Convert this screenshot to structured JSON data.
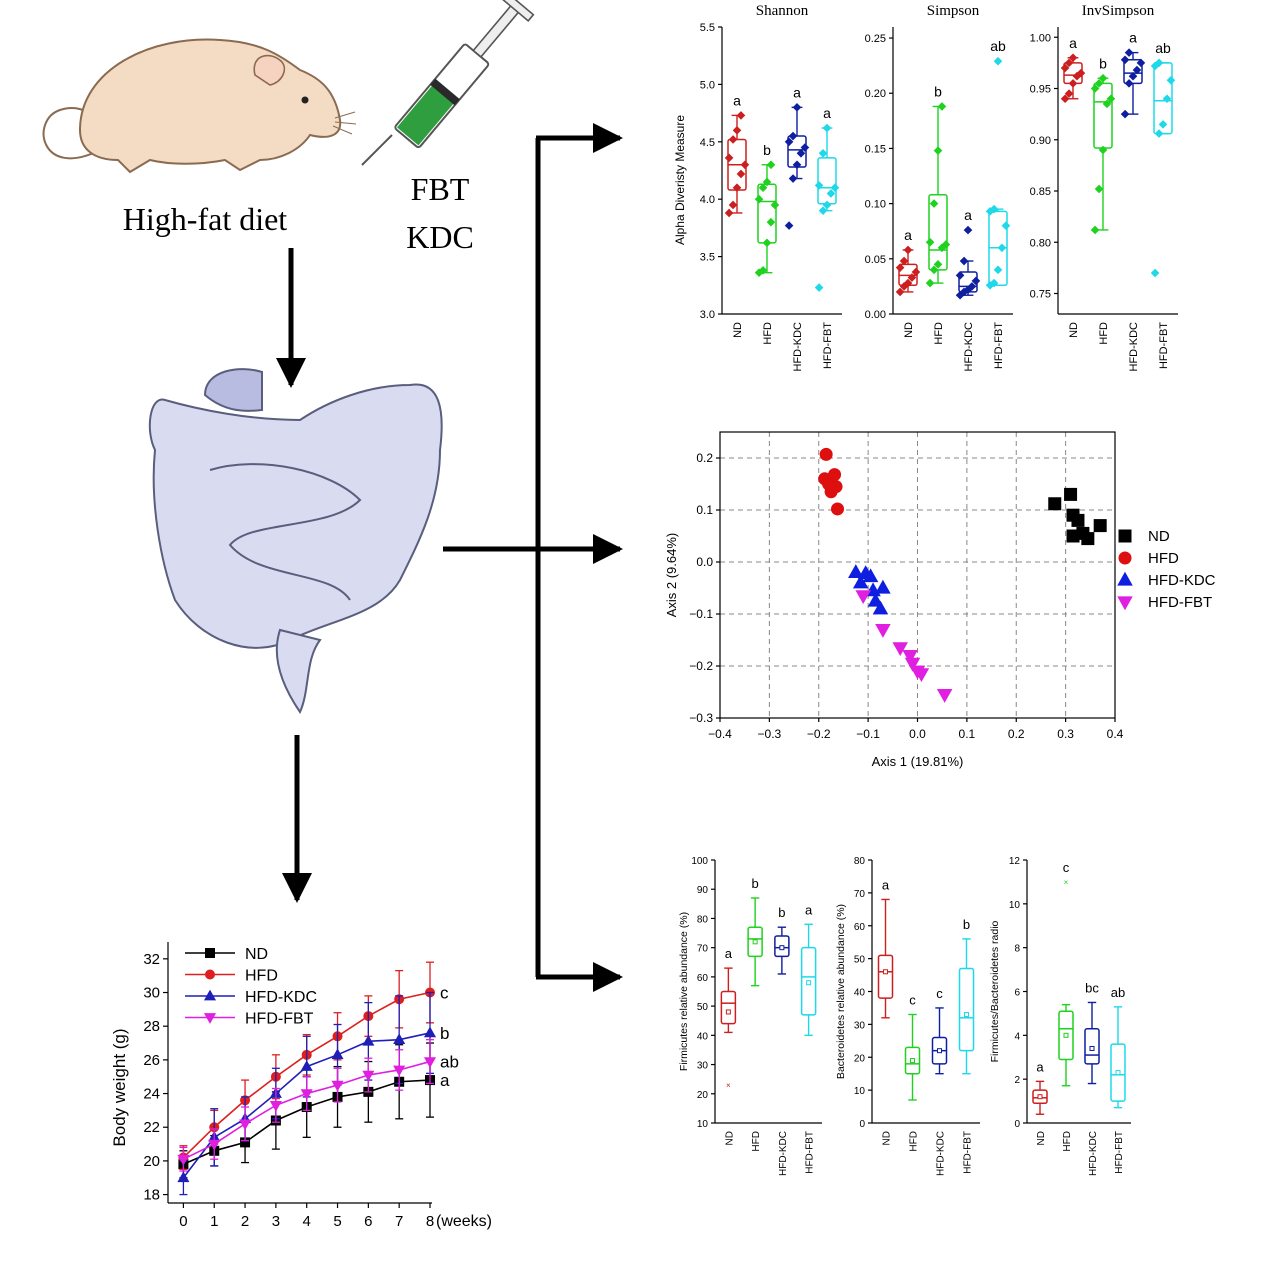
{
  "illustration": {
    "diet_label": "High-fat diet",
    "treatment_labels": [
      "FBT",
      "KDC"
    ]
  },
  "colors": {
    "ND": "#cc1f1f",
    "HFD": "#1fd21f",
    "HFD-KDC": "#0f1f9f",
    "HFD-FBT": "#1fd8e8",
    "mouse": "#f3dcc3",
    "gut": "#d9dcf0"
  },
  "chart_data": [
    {
      "id": "alpha",
      "type": "box",
      "ylabel": "Alpha Diveristy Measure",
      "groups": [
        "ND",
        "HFD",
        "HFD-KDC",
        "HFD-FBT"
      ],
      "panels": [
        {
          "title": "Shannon",
          "ylim": [
            3.0,
            5.5
          ],
          "yticks": [
            3.0,
            3.5,
            4.0,
            4.5,
            5.0,
            5.5
          ],
          "tick_labels": [
            "3.0",
            "3.5",
            "4.0",
            "4.5",
            "5.0",
            "5.5"
          ],
          "boxes": [
            {
              "q1": 4.08,
              "median": 4.3,
              "q3": 4.52,
              "whisker_low": 3.88,
              "whisker_high": 4.73,
              "points": [
                3.88,
                3.95,
                4.1,
                4.22,
                4.3,
                4.36,
                4.52,
                4.6,
                4.73
              ],
              "letter": "a"
            },
            {
              "q1": 3.62,
              "median": 3.98,
              "q3": 4.13,
              "whisker_low": 3.36,
              "whisker_high": 4.3,
              "points": [
                3.36,
                3.38,
                3.62,
                3.8,
                3.95,
                4.0,
                4.1,
                4.15,
                4.3
              ],
              "letter": "b"
            },
            {
              "q1": 4.28,
              "median": 4.43,
              "q3": 4.55,
              "whisker_low": 4.18,
              "whisker_high": 4.8,
              "points": [
                3.77,
                4.18,
                4.3,
                4.4,
                4.45,
                4.5,
                4.55,
                4.8
              ],
              "letter": "a"
            },
            {
              "q1": 3.96,
              "median": 4.1,
              "q3": 4.36,
              "whisker_low": 3.9,
              "whisker_high": 4.62,
              "points": [
                3.23,
                3.9,
                3.95,
                4.05,
                4.1,
                4.12,
                4.4,
                4.62
              ],
              "letter": "a"
            }
          ]
        },
        {
          "title": "Simpson",
          "ylim": [
            0.0,
            0.26
          ],
          "yticks": [
            0.0,
            0.05,
            0.1,
            0.15,
            0.2,
            0.25
          ],
          "tick_labels": [
            "0.00",
            "0.05",
            "0.10",
            "0.15",
            "0.20",
            "0.25"
          ],
          "boxes": [
            {
              "q1": 0.026,
              "median": 0.035,
              "q3": 0.045,
              "whisker_low": 0.02,
              "whisker_high": 0.058,
              "points": [
                0.02,
                0.025,
                0.028,
                0.033,
                0.038,
                0.042,
                0.048,
                0.058
              ],
              "letter": "a"
            },
            {
              "q1": 0.04,
              "median": 0.058,
              "q3": 0.108,
              "whisker_low": 0.028,
              "whisker_high": 0.188,
              "points": [
                0.028,
                0.04,
                0.045,
                0.06,
                0.063,
                0.065,
                0.1,
                0.148,
                0.188
              ],
              "letter": "b"
            },
            {
              "q1": 0.02,
              "median": 0.025,
              "q3": 0.038,
              "whisker_low": 0.017,
              "whisker_high": 0.048,
              "points": [
                0.017,
                0.02,
                0.022,
                0.025,
                0.03,
                0.035,
                0.048,
                0.076
              ],
              "letter": "a"
            },
            {
              "q1": 0.026,
              "median": 0.06,
              "q3": 0.093,
              "whisker_low": 0.026,
              "whisker_high": 0.095,
              "points": [
                0.026,
                0.028,
                0.04,
                0.06,
                0.08,
                0.093,
                0.095,
                0.229
              ],
              "letter": "ab"
            }
          ]
        },
        {
          "title": "InvSimpson",
          "ylim": [
            0.73,
            1.01
          ],
          "yticks": [
            0.75,
            0.8,
            0.85,
            0.9,
            0.95,
            1.0
          ],
          "tick_labels": [
            "0.75",
            "0.80",
            "0.85",
            "0.90",
            "0.95",
            "1.00"
          ],
          "boxes": [
            {
              "q1": 0.955,
              "median": 0.963,
              "q3": 0.975,
              "whisker_low": 0.94,
              "whisker_high": 0.98,
              "points": [
                0.94,
                0.945,
                0.955,
                0.962,
                0.965,
                0.97,
                0.975,
                0.98
              ],
              "letter": "a"
            },
            {
              "q1": 0.892,
              "median": 0.937,
              "q3": 0.955,
              "whisker_low": 0.812,
              "whisker_high": 0.96,
              "points": [
                0.812,
                0.852,
                0.89,
                0.935,
                0.94,
                0.95,
                0.955,
                0.96
              ],
              "letter": "b"
            },
            {
              "q1": 0.955,
              "median": 0.965,
              "q3": 0.978,
              "whisker_low": 0.925,
              "whisker_high": 0.985,
              "points": [
                0.925,
                0.955,
                0.962,
                0.968,
                0.975,
                0.978,
                0.985
              ],
              "letter": "a"
            },
            {
              "q1": 0.906,
              "median": 0.938,
              "q3": 0.975,
              "whisker_low": 0.906,
              "whisker_high": 0.975,
              "points": [
                0.77,
                0.906,
                0.915,
                0.94,
                0.958,
                0.972,
                0.975
              ],
              "letter": "ab"
            }
          ]
        }
      ]
    },
    {
      "id": "pcoa",
      "type": "scatter",
      "xlabel": "Axis 1 (19.81%)",
      "ylabel": "Axis 2 (9.64%)",
      "xlim": [
        -0.4,
        0.4
      ],
      "ylim": [
        -0.3,
        0.25
      ],
      "xticks": [
        -0.4,
        -0.3,
        -0.2,
        -0.1,
        0.0,
        0.1,
        0.2,
        0.3,
        0.4
      ],
      "xtick_labels": [
        "−0.4",
        "−0.3",
        "−0.2",
        "−0.1",
        "0.0",
        "0.1",
        "0.2",
        "0.3",
        "0.4"
      ],
      "yticks": [
        -0.3,
        -0.2,
        -0.1,
        0.0,
        0.1,
        0.2
      ],
      "ytick_labels": [
        "−0.3",
        "−0.2",
        "−0.1",
        "0.0",
        "0.1",
        "0.2"
      ],
      "grid": true,
      "legend_position": "right",
      "series": [
        {
          "name": "ND",
          "color": "#000000",
          "marker": "square",
          "points": [
            [
              0.278,
              0.112
            ],
            [
              0.31,
              0.13
            ],
            [
              0.315,
              0.09
            ],
            [
              0.325,
              0.08
            ],
            [
              0.315,
              0.05
            ],
            [
              0.335,
              0.055
            ],
            [
              0.345,
              0.045
            ],
            [
              0.37,
              0.07
            ]
          ]
        },
        {
          "name": "HFD",
          "color": "#dd0f0f",
          "marker": "circle",
          "points": [
            [
              -0.185,
              0.207
            ],
            [
              -0.188,
              0.16
            ],
            [
              -0.18,
              0.15
            ],
            [
              -0.168,
              0.168
            ],
            [
              -0.175,
              0.135
            ],
            [
              -0.165,
              0.145
            ],
            [
              -0.162,
              0.102
            ]
          ]
        },
        {
          "name": "HFD-KDC",
          "color": "#0f1fdf",
          "marker": "triangle-up",
          "points": [
            [
              -0.125,
              -0.02
            ],
            [
              -0.105,
              -0.022
            ],
            [
              -0.115,
              -0.04
            ],
            [
              -0.095,
              -0.028
            ],
            [
              -0.09,
              -0.055
            ],
            [
              -0.07,
              -0.05
            ],
            [
              -0.085,
              -0.075
            ],
            [
              -0.075,
              -0.09
            ]
          ]
        },
        {
          "name": "HFD-FBT",
          "color": "#e01fe0",
          "marker": "triangle-down",
          "points": [
            [
              -0.11,
              -0.065
            ],
            [
              -0.07,
              -0.13
            ],
            [
              -0.035,
              -0.165
            ],
            [
              -0.015,
              -0.18
            ],
            [
              -0.01,
              -0.195
            ],
            [
              0.0,
              -0.21
            ],
            [
              0.008,
              -0.215
            ],
            [
              0.055,
              -0.255
            ]
          ]
        }
      ]
    },
    {
      "id": "phylum",
      "type": "box",
      "groups": [
        "ND",
        "HFD",
        "HFD-KDC",
        "HFD-FBT"
      ],
      "panels": [
        {
          "ylabel": "Firmicutes relative abundance (%)",
          "ylim": [
            10,
            100
          ],
          "yticks": [
            10,
            20,
            30,
            40,
            50,
            60,
            70,
            80,
            90,
            100
          ],
          "tick_labels": [
            "10",
            "20",
            "30",
            "40",
            "50",
            "60",
            "70",
            "80",
            "90",
            "100"
          ],
          "boxes": [
            {
              "q1": 44,
              "median": 51,
              "q3": 55,
              "whisker_low": 41,
              "whisker_high": 63,
              "mean": 48,
              "outlier": 23,
              "letter": "a"
            },
            {
              "q1": 67,
              "median": 73,
              "q3": 77,
              "whisker_low": 57,
              "whisker_high": 87,
              "mean": 72,
              "letter": "b"
            },
            {
              "q1": 67,
              "median": 70,
              "q3": 74,
              "whisker_low": 61,
              "whisker_high": 77,
              "mean": 70,
              "letter": "b"
            },
            {
              "q1": 47,
              "median": 60,
              "q3": 70,
              "whisker_low": 40,
              "whisker_high": 78,
              "mean": 58,
              "letter": "a"
            }
          ]
        },
        {
          "ylabel": "Bacteroidetes relative abundance (%)",
          "ylim": [
            0,
            80
          ],
          "yticks": [
            0,
            10,
            20,
            30,
            40,
            50,
            60,
            70,
            80
          ],
          "tick_labels": [
            "0",
            "10",
            "20",
            "30",
            "40",
            "50",
            "60",
            "70",
            "80"
          ],
          "boxes": [
            {
              "q1": 38,
              "median": 46,
              "q3": 51,
              "whisker_low": 32,
              "whisker_high": 68,
              "mean": 46,
              "letter": "a"
            },
            {
              "q1": 15,
              "median": 18,
              "q3": 23,
              "whisker_low": 7,
              "whisker_high": 33,
              "mean": 19,
              "letter": "c"
            },
            {
              "q1": 18,
              "median": 22,
              "q3": 26,
              "whisker_low": 15,
              "whisker_high": 35,
              "mean": 22,
              "letter": "c"
            },
            {
              "q1": 22,
              "median": 32,
              "q3": 47,
              "whisker_low": 15,
              "whisker_high": 56,
              "mean": 33,
              "letter": "b"
            }
          ]
        },
        {
          "ylabel": "Firmicutes/Bacteroidetes radio",
          "ylim": [
            0,
            12
          ],
          "yticks": [
            0,
            2,
            4,
            6,
            8,
            10,
            12
          ],
          "tick_labels": [
            "0",
            "2",
            "4",
            "6",
            "8",
            "10",
            "12"
          ],
          "boxes": [
            {
              "q1": 0.9,
              "median": 1.15,
              "q3": 1.5,
              "whisker_low": 0.4,
              "whisker_high": 1.9,
              "mean": 1.2,
              "letter": "a"
            },
            {
              "q1": 2.9,
              "median": 4.3,
              "q3": 5.1,
              "whisker_low": 1.7,
              "whisker_high": 5.4,
              "mean": 4.0,
              "outlier": 11.0,
              "letter": "c"
            },
            {
              "q1": 2.7,
              "median": 3.1,
              "q3": 4.3,
              "whisker_low": 1.8,
              "whisker_high": 5.5,
              "mean": 3.4,
              "letter": "bc"
            },
            {
              "q1": 1.0,
              "median": 2.2,
              "q3": 3.6,
              "whisker_low": 0.7,
              "whisker_high": 5.3,
              "mean": 2.3,
              "letter": "ab"
            }
          ]
        }
      ]
    },
    {
      "id": "weight",
      "type": "line",
      "xlabel": "(weeks)",
      "ylabel": "Body weight (g)",
      "x": [
        0,
        1,
        2,
        3,
        4,
        5,
        6,
        7,
        8
      ],
      "xtick_labels": [
        "0",
        "1",
        "2",
        "3",
        "4",
        "5",
        "6",
        "7",
        "8"
      ],
      "ylim": [
        17.5,
        33
      ],
      "yticks": [
        18,
        20,
        22,
        24,
        26,
        28,
        30,
        32
      ],
      "ytick_labels": [
        "18",
        "20",
        "22",
        "24",
        "26",
        "28",
        "30",
        "32"
      ],
      "legend_position": "top-left",
      "series": [
        {
          "name": "ND",
          "color": "#000000",
          "marker": "square",
          "values": [
            19.8,
            20.6,
            21.1,
            22.4,
            23.2,
            23.8,
            24.1,
            24.7,
            24.8
          ],
          "errors": [
            0.8,
            0.9,
            1.2,
            1.7,
            1.8,
            1.8,
            1.8,
            2.2,
            2.2
          ],
          "letter": "a"
        },
        {
          "name": "HFD",
          "color": "#dd1f1f",
          "marker": "circle",
          "values": [
            20.2,
            22.0,
            23.6,
            25.0,
            26.3,
            27.4,
            28.6,
            29.6,
            30.0
          ],
          "errors": [
            0.7,
            1.0,
            1.2,
            1.3,
            1.2,
            1.4,
            1.2,
            1.7,
            1.8
          ],
          "letter": "c"
        },
        {
          "name": "HFD-KDC",
          "color": "#1f1fb8",
          "marker": "triangle-up",
          "values": [
            19.0,
            21.4,
            22.5,
            24.0,
            25.6,
            26.3,
            27.1,
            27.2,
            27.6
          ],
          "errors": [
            1.0,
            1.7,
            1.3,
            1.5,
            1.8,
            1.8,
            2.3,
            2.6,
            2.4
          ],
          "letter": "b"
        },
        {
          "name": "HFD-FBT",
          "color": "#e01fe0",
          "marker": "triangle-down",
          "values": [
            20.1,
            21.0,
            22.2,
            23.3,
            24.0,
            24.5,
            25.1,
            25.4,
            25.9
          ],
          "errors": [
            0.7,
            0.9,
            1.0,
            1.0,
            1.0,
            1.0,
            1.0,
            1.2,
            1.3
          ],
          "letter": "ab"
        }
      ]
    }
  ]
}
